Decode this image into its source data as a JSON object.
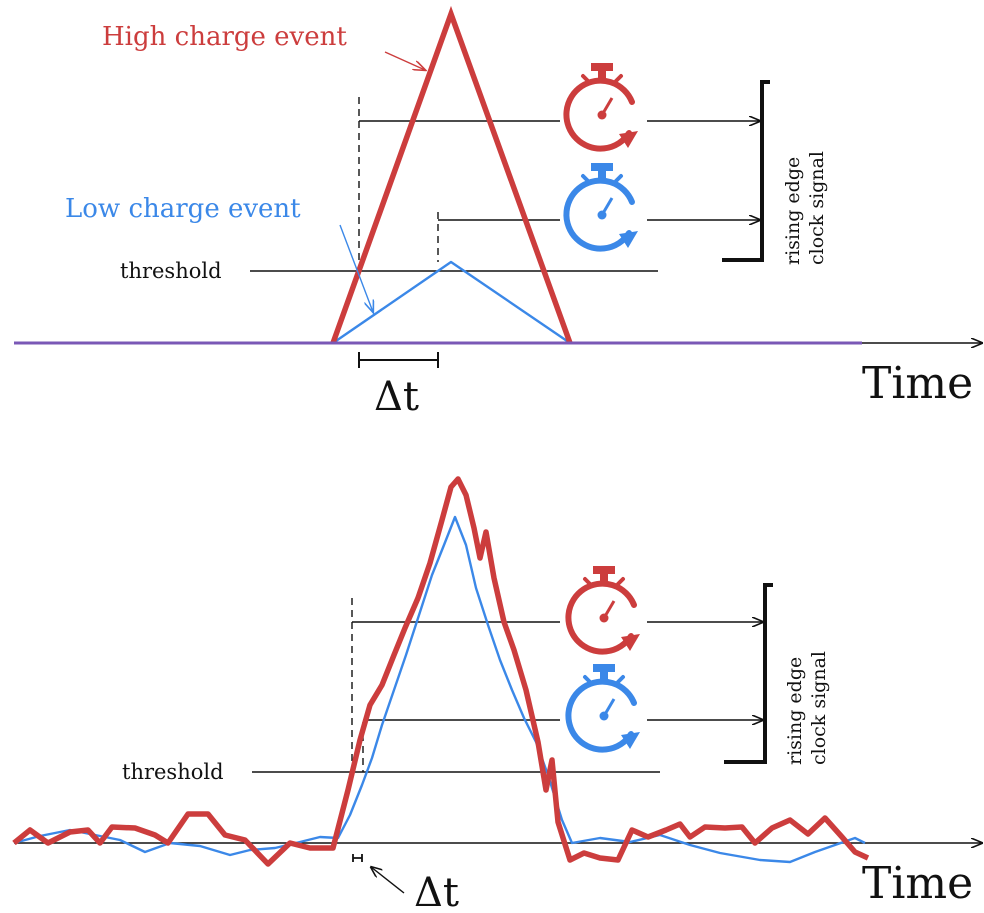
{
  "colors": {
    "high": "#cc3d3d",
    "low": "#3b88e8",
    "ink": "#111111"
  },
  "icons": [
    "stopwatch-icon-red",
    "stopwatch-icon-blue"
  ],
  "top": {
    "high_label": "High charge event",
    "low_label": "Low charge event",
    "threshold_label": "threshold",
    "delta_label": "Δt",
    "time_label": "Time",
    "rising_line1": "rising edge",
    "rising_line2": "clock signal"
  },
  "bottom": {
    "threshold_label": "threshold",
    "delta_label": "Δt",
    "time_label": "Time",
    "rising_line1": "rising edge",
    "rising_line2": "clock signal"
  }
}
